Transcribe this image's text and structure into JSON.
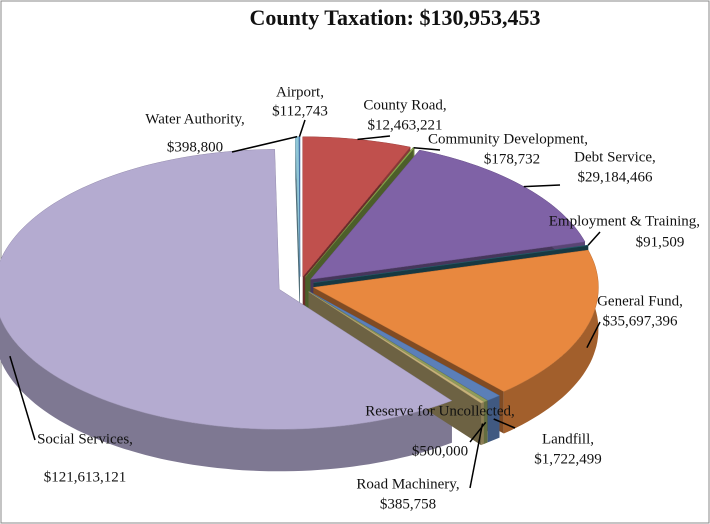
{
  "chart_data": {
    "type": "pie",
    "title": "County Taxation: $130,953,453",
    "categories": [
      "County Road,",
      "Community Development,",
      "Debt Service,",
      "Employment & Training,",
      "General Fund,",
      "Landfill,",
      "Reserve for Uncollected,",
      "Road Machinery,",
      "Social Services,",
      "Water Authority,",
      "Airport,"
    ],
    "values": [
      12463221,
      178732,
      29184466,
      91509,
      35697396,
      1722499,
      500000,
      385758,
      121613121,
      398800,
      112743
    ],
    "value_labels": [
      "$12,463,221",
      "$178,732",
      "$29,184,466",
      "$91,509",
      "$35,697,396",
      "$1,722,499",
      "$500,000",
      "$385,758",
      "$121,613,121",
      "$398,800",
      "$112,743"
    ],
    "colors": [
      "#c0504d",
      "#8bab4c",
      "#7f62a6",
      "#2a6878",
      "#e8883f",
      "#5b7fb8",
      "#8e9c5c",
      "#c7b27a",
      "#b4abd0",
      "#8fc6d8",
      "#4f81bd"
    ]
  }
}
